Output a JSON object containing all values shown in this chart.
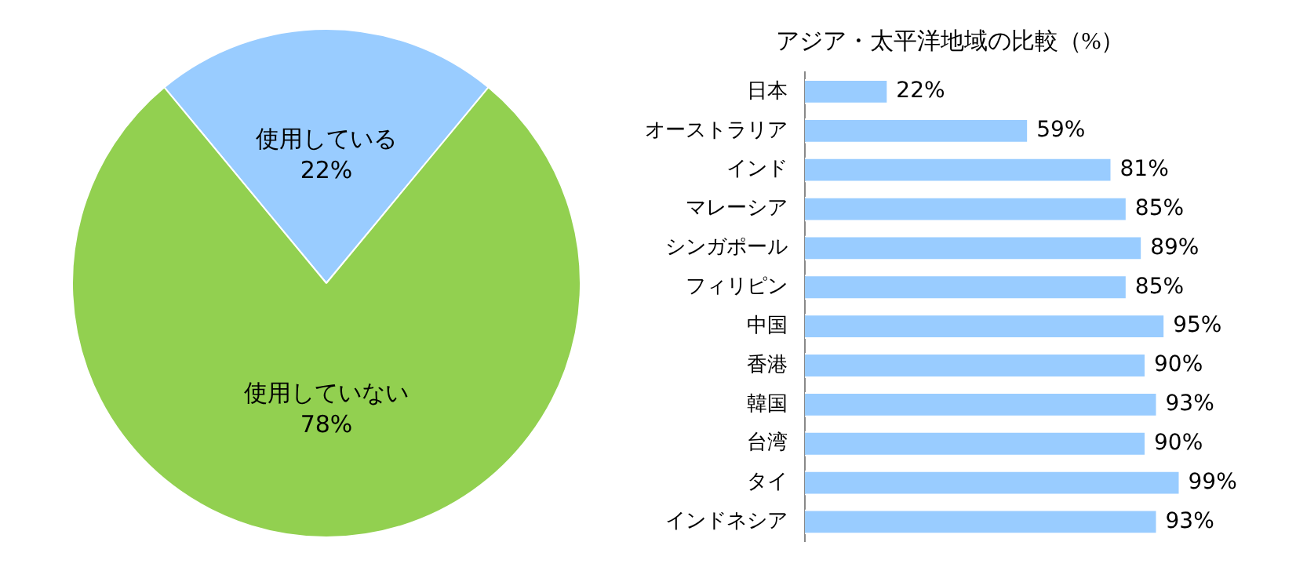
{
  "chart_data": [
    {
      "type": "pie",
      "categories": [
        "使用している",
        "使用していない"
      ],
      "values": [
        22,
        78
      ],
      "colors": [
        "#99ccff",
        "#92d050"
      ],
      "value_labels": [
        "22%",
        "78%"
      ],
      "legend": false
    },
    {
      "type": "bar",
      "orientation": "horizontal",
      "title": "アジア・太平洋地域の比較（%）",
      "categories": [
        "日本",
        "オーストラリア",
        "インド",
        "マレーシア",
        "シンガポール",
        "フィリピン",
        "中国",
        "香港",
        "韓国",
        "台湾",
        "タイ",
        "インドネシア"
      ],
      "values": [
        22,
        59,
        81,
        85,
        89,
        85,
        95,
        90,
        93,
        90,
        99,
        93
      ],
      "color": "#99ccff",
      "value_labels": [
        "22%",
        "59%",
        "81%",
        "85%",
        "89%",
        "85%",
        "95%",
        "90%",
        "93%",
        "90%",
        "99%",
        "93%"
      ],
      "legend": false
    }
  ]
}
